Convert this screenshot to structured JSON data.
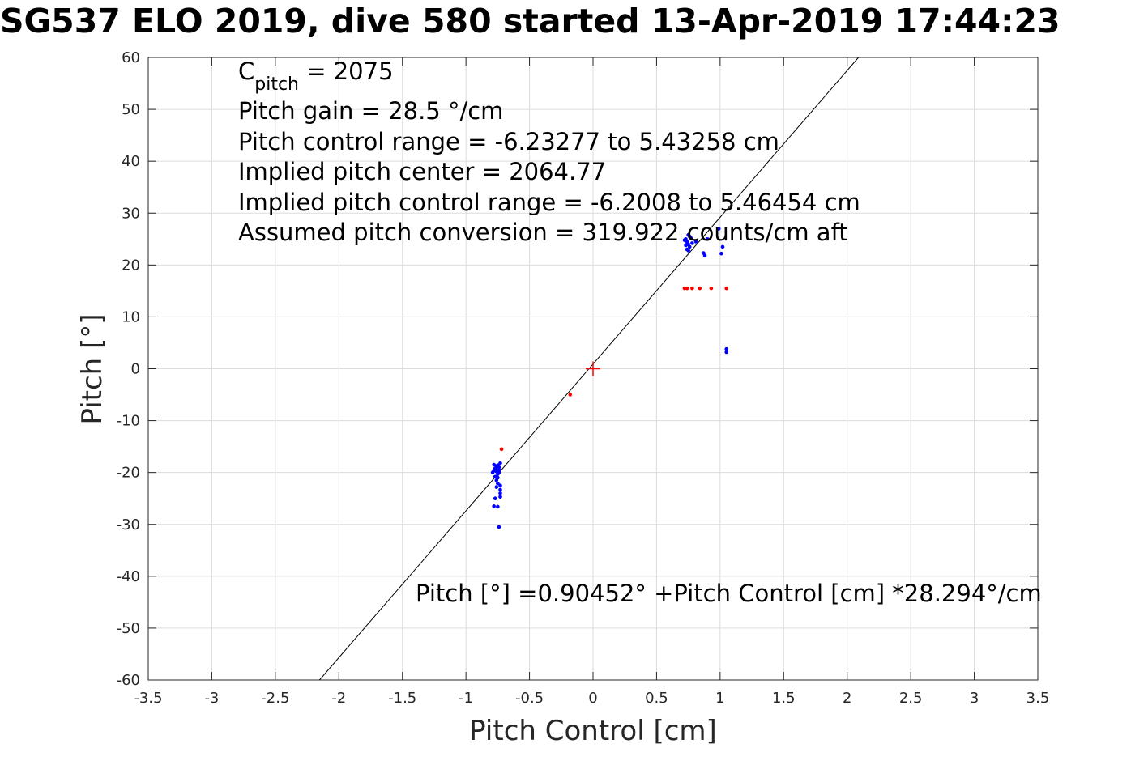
{
  "chart_data": {
    "type": "scatter",
    "title": "SG537 ELO 2019, dive 580 started 13-Apr-2019 17:44:23",
    "xlabel": "Pitch Control [cm]",
    "ylabel": "Pitch [°]",
    "xlim": [
      -3.5,
      3.5
    ],
    "ylim": [
      -60,
      60
    ],
    "xticks": [
      -3.5,
      -3,
      -2.5,
      -2,
      -1.5,
      -1,
      -0.5,
      0,
      0.5,
      1,
      1.5,
      2,
      2.5,
      3,
      3.5
    ],
    "xtick_labels": [
      "-3.5",
      "-3",
      "-2.5",
      "-2",
      "-1.5",
      "-1",
      "-0.5",
      "0",
      "0.5",
      "1",
      "1.5",
      "2",
      "2.5",
      "3",
      "3.5"
    ],
    "yticks": [
      60,
      50,
      40,
      30,
      20,
      10,
      0,
      -10,
      -20,
      -30,
      -40,
      -50,
      -60
    ],
    "ytick_labels": [
      "60",
      "50",
      "40",
      "30",
      "20",
      "10",
      "0",
      "-10",
      "-20",
      "-30",
      "-40",
      "-50",
      "-60"
    ],
    "grid": true,
    "annotations": {
      "c_pitch_main": "C",
      "c_pitch_sub": "pitch",
      "c_pitch_value": " = 2075",
      "lines": [
        "Pitch gain = 28.5 °/cm",
        "Pitch control range = -6.23277 to 5.43258 cm",
        "Implied pitch center = 2064.77",
        "Implied pitch control range = -6.2008 to 5.46454 cm",
        "Assumed pitch conversion = 319.922 counts/cm aft"
      ],
      "fit_equation": "Pitch [°] =0.90452° +Pitch Control [cm] *28.294°/cm"
    },
    "fit_line": {
      "intercept": 0.90452,
      "slope": 28.294,
      "color": "#000000"
    },
    "center_marker": {
      "x": 0,
      "y": 0,
      "color": "#ff0000"
    },
    "series": [
      {
        "color": "#0000ff",
        "points": [
          [
            -0.78,
            -18.5
          ],
          [
            -0.77,
            -19.2
          ],
          [
            -0.76,
            -19.8
          ],
          [
            -0.75,
            -20.3
          ],
          [
            -0.74,
            -19.0
          ],
          [
            -0.73,
            -18.2
          ],
          [
            -0.77,
            -20.8
          ],
          [
            -0.76,
            -21.5
          ],
          [
            -0.75,
            -22.1
          ],
          [
            -0.74,
            -20.0
          ],
          [
            -0.78,
            -19.6
          ],
          [
            -0.76,
            -18.8
          ],
          [
            -0.75,
            -21.0
          ],
          [
            -0.73,
            -22.5
          ],
          [
            -0.73,
            -23.3
          ],
          [
            -0.73,
            -24.0
          ],
          [
            -0.73,
            -24.7
          ],
          [
            -0.76,
            -22.8
          ],
          [
            -0.77,
            -25.0
          ],
          [
            -0.78,
            -26.5
          ],
          [
            -0.75,
            -26.6
          ],
          [
            -0.74,
            -30.5
          ],
          [
            -0.79,
            -20.0
          ],
          [
            -0.74,
            -19.5
          ],
          [
            -0.75,
            -18.6
          ],
          [
            0.73,
            25.0
          ],
          [
            0.74,
            24.5
          ],
          [
            0.75,
            24.0
          ],
          [
            0.76,
            23.5
          ],
          [
            0.74,
            23.0
          ],
          [
            0.75,
            22.8
          ],
          [
            0.72,
            24.8
          ],
          [
            0.77,
            25.2
          ],
          [
            0.78,
            24.2
          ],
          [
            0.76,
            25.5
          ],
          [
            0.73,
            23.8
          ],
          [
            0.75,
            25.8
          ],
          [
            0.74,
            24.0
          ],
          [
            0.87,
            22.3
          ],
          [
            0.88,
            21.8
          ],
          [
            0.99,
            27.0
          ],
          [
            1.02,
            23.5
          ],
          [
            1.01,
            22.2
          ],
          [
            1.05,
            3.8
          ],
          [
            1.05,
            3.2
          ],
          [
            0.81,
            24.5
          ],
          [
            0.9,
            25.0
          ]
        ]
      },
      {
        "color": "#ff0000",
        "points": [
          [
            -0.72,
            -15.5
          ],
          [
            -0.18,
            -5.0
          ],
          [
            0.72,
            15.5
          ],
          [
            0.74,
            15.5
          ],
          [
            0.78,
            15.5
          ],
          [
            0.84,
            15.5
          ],
          [
            0.93,
            15.5
          ],
          [
            1.05,
            15.5
          ]
        ]
      }
    ]
  }
}
